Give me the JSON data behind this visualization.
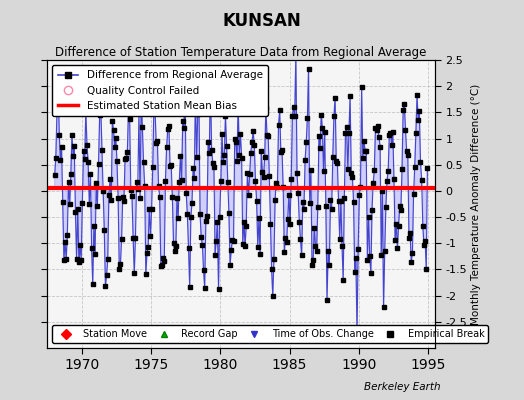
{
  "title": "KUNSAN",
  "subtitle": "Difference of Station Temperature Data from Regional Average",
  "ylabel": "Monthly Temperature Anomaly Difference (°C)",
  "xlabel_note": "Berkeley Earth",
  "bias": 0.05,
  "xlim": [
    1967.5,
    1995.5
  ],
  "ylim": [
    -3.0,
    2.5
  ],
  "yticks": [
    -2.5,
    -2,
    -1.5,
    -1,
    -0.5,
    0,
    0.5,
    1,
    1.5,
    2,
    2.5
  ],
  "xticks": [
    1970,
    1975,
    1980,
    1985,
    1990,
    1995
  ],
  "line_color": "#4444cc",
  "line_color_fill": "#aaaaff",
  "marker_color": "black",
  "bias_color": "red",
  "bg_color": "#d8d8d8",
  "plot_bg": "#f5f5f5",
  "grid_color": "#bbbbbb",
  "seed": 42,
  "start_year": 1968,
  "end_year": 1994,
  "seasonal_amp": 1.3,
  "noise_std": 0.5
}
